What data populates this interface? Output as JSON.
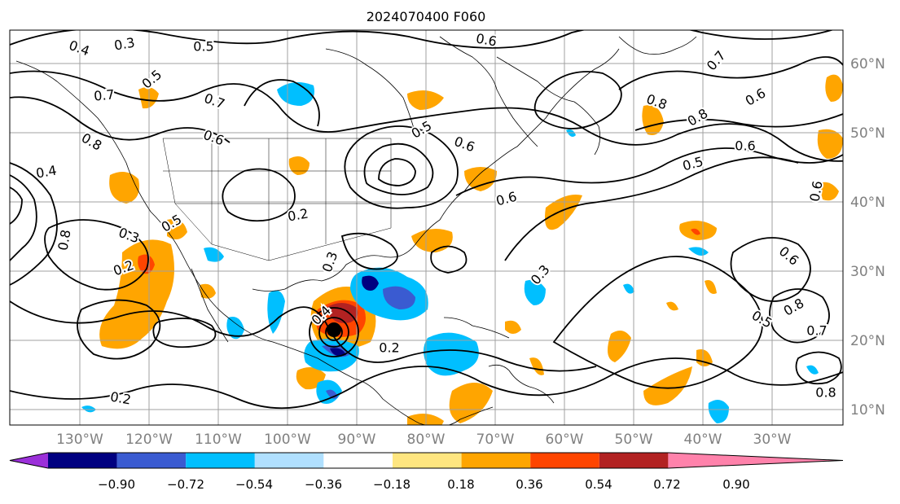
{
  "title": "2024070400 F060",
  "map": {
    "lon_labels": [
      "130°W",
      "120°W",
      "110°W",
      "100°W",
      "90°W",
      "80°W",
      "70°W",
      "60°W",
      "50°W",
      "40°W",
      "30°W"
    ],
    "lat_labels": [
      "60°N",
      "50°N",
      "40°N",
      "30°N",
      "20°N",
      "10°N"
    ],
    "contour_labels": [
      "0.3",
      "0.5",
      "0.4",
      "0.7",
      "0.7",
      "0.6",
      "0.8",
      "0.4",
      "0.5",
      "0.2",
      "0.3",
      "0.6",
      "0.5",
      "0.6",
      "0.8",
      "0.8",
      "0.6",
      "0.5",
      "0.6",
      "0.7",
      "0.8",
      "0.6",
      "0.6",
      "0.3",
      "0.5",
      "0.6",
      "0.8",
      "0.7",
      "0.5",
      "0.2",
      "0.4",
      "0.2",
      "0.3",
      "0.2",
      "0.8"
    ],
    "colors": {
      "grid": "#a0a0a0",
      "contour": "#000000",
      "coast": "#000000",
      "axis_label": "#808080"
    }
  },
  "colorbar": {
    "ticks": [
      "−0.90",
      "−0.72",
      "−0.54",
      "−0.36",
      "−0.18",
      "0.18",
      "0.36",
      "0.54",
      "0.72",
      "0.90"
    ],
    "segments": [
      {
        "color": "#9b30d9"
      },
      {
        "color": "#000080"
      },
      {
        "color": "#3a5bd1"
      },
      {
        "color": "#00bfff"
      },
      {
        "color": "#b0e0ff"
      },
      {
        "color": "#ffffff"
      },
      {
        "color": "#ffe680"
      },
      {
        "color": "#ffa500"
      },
      {
        "color": "#ff4500"
      },
      {
        "color": "#b22222"
      },
      {
        "color": "#ff82ab"
      }
    ]
  }
}
